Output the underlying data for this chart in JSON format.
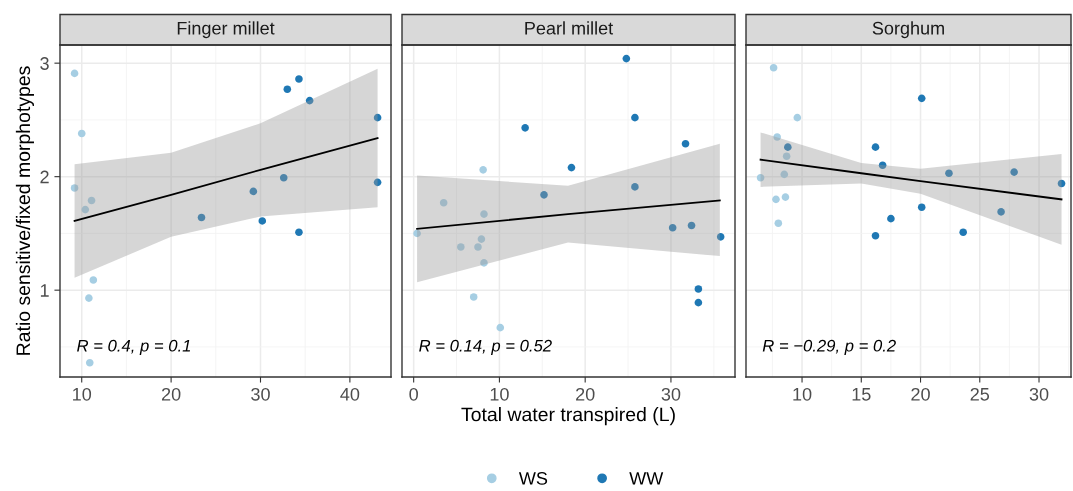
{
  "chart_data": [
    {
      "type": "scatter",
      "title": "Finger millet",
      "ylabel": "Ratio sensitive/fixed morphotypes",
      "grid": true,
      "xlim": [
        7.57,
        44.6
      ],
      "ylim": [
        0.235,
        3.16
      ],
      "xticks": [
        10,
        {
          "value": 15,
          "label": null
        },
        20,
        {
          "value": 25,
          "label": null
        },
        30,
        {
          "value": 35,
          "label": null
        },
        40
      ],
      "yticks": [
        {
          "value": 0.5,
          "label": null
        },
        1,
        {
          "value": 1.5,
          "label": null
        },
        2,
        {
          "value": 2.5,
          "label": null
        },
        3
      ],
      "annotations": [
        "R = 0.4, p = 0.1"
      ],
      "series": [
        {
          "color": "#a6cee3",
          "marker": "circle",
          "x": [
            9.2,
            10.0,
            9.2,
            10.4,
            11.1,
            11.3,
            10.8,
            10.9
          ],
          "values": [
            2.91,
            2.38,
            1.9,
            1.71,
            1.79,
            1.09,
            0.93,
            0.36
          ]
        },
        {
          "color": "#1f78b4",
          "marker": "circle",
          "x": [
            23.4,
            29.2,
            30.2,
            32.6,
            33.0,
            34.3,
            34.3,
            35.5,
            43.1,
            43.1
          ],
          "values": [
            1.64,
            1.87,
            1.61,
            1.99,
            2.77,
            2.86,
            1.51,
            2.67,
            2.52,
            1.95
          ]
        },
        {
          "type": "line",
          "color": "#000000",
          "x": [
            9.2,
            20,
            30,
            43.1
          ],
          "values": [
            1.61,
            1.84,
            2.06,
            2.34
          ],
          "lower": [
            1.11,
            1.47,
            1.65,
            1.73
          ],
          "upper": [
            2.11,
            2.21,
            2.47,
            2.95
          ]
        }
      ]
    },
    {
      "type": "scatter",
      "title": "Pearl millet",
      "xlabel": "Total water transpired (L)",
      "grid": true,
      "legend": "bottom",
      "tick_labels": "x",
      "xlim": [
        -1.36,
        37.47
      ],
      "ylim": [
        0.235,
        3.16
      ],
      "xticks": [
        0,
        {
          "value": 5,
          "label": null
        },
        10,
        {
          "value": 15,
          "label": null
        },
        20,
        {
          "value": 25,
          "label": null
        },
        30,
        {
          "value": 35,
          "label": null
        }
      ],
      "yticks": [
        {
          "value": 0.5,
          "label": null
        },
        1,
        {
          "value": 1.5,
          "label": null
        },
        2,
        {
          "value": 2.5,
          "label": null
        },
        3
      ],
      "annotations": [
        "R = 0.14, p = 0.52"
      ],
      "series": [
        {
          "name": "WS",
          "color": "#a6cee3",
          "marker": "circle",
          "x": [
            0.4,
            3.5,
            5.5,
            7.5,
            7.9,
            8.1,
            8.2,
            8.2,
            7.0,
            10.1
          ],
          "values": [
            1.5,
            1.77,
            1.38,
            1.38,
            1.45,
            2.06,
            1.67,
            1.24,
            0.94,
            0.67
          ]
        },
        {
          "name": "WW",
          "color": "#1f78b4",
          "marker": "circle",
          "x": [
            13.0,
            15.2,
            18.4,
            24.8,
            25.8,
            25.8,
            30.2,
            31.7,
            32.4,
            35.8,
            33.2,
            33.2
          ],
          "values": [
            2.43,
            1.84,
            2.08,
            3.04,
            2.52,
            1.91,
            1.55,
            2.29,
            1.57,
            1.47,
            1.01,
            0.89
          ]
        },
        {
          "type": "line",
          "color": "#000000",
          "x": [
            0.4,
            18,
            35.7
          ],
          "values": [
            1.54,
            1.67,
            1.79
          ],
          "lower": [
            1.07,
            1.42,
            1.3
          ],
          "upper": [
            2.01,
            1.92,
            2.29
          ]
        }
      ]
    },
    {
      "type": "scatter",
      "title": "Sorghum",
      "grid": true,
      "tick_labels": "x",
      "xlim": [
        5.27,
        32.7
      ],
      "ylim": [
        0.235,
        3.16
      ],
      "xticks": [
        {
          "value": 7.5,
          "label": null
        },
        10,
        {
          "value": 12.5,
          "label": null
        },
        15,
        {
          "value": 17.5,
          "label": null
        },
        20,
        {
          "value": 22.5,
          "label": null
        },
        25,
        {
          "value": 27.5,
          "label": null
        },
        30,
        {
          "value": 32.5,
          "label": null
        }
      ],
      "yticks": [
        {
          "value": 0.5,
          "label": null
        },
        1,
        {
          "value": 1.5,
          "label": null
        },
        2,
        {
          "value": 2.5,
          "label": null
        },
        3
      ],
      "annotations": [
        "R = −0.29, p = 0.2"
      ],
      "series": [
        {
          "color": "#a6cee3",
          "marker": "circle",
          "x": [
            7.6,
            9.6,
            7.9,
            8.7,
            8.5,
            6.5,
            7.8,
            8.6,
            8.0
          ],
          "values": [
            2.96,
            2.52,
            2.35,
            2.18,
            2.02,
            1.99,
            1.8,
            1.82,
            1.59
          ]
        },
        {
          "color": "#1f78b4",
          "marker": "circle",
          "x": [
            8.8,
            16.2,
            16.8,
            20.1,
            22.4,
            27.9,
            31.9,
            20.1,
            17.5,
            16.2,
            23.6,
            26.8
          ],
          "values": [
            2.26,
            2.26,
            2.1,
            2.69,
            2.03,
            2.04,
            1.94,
            1.73,
            1.63,
            1.48,
            1.51,
            1.69
          ]
        },
        {
          "type": "line",
          "color": "#000000",
          "x": [
            6.5,
            15,
            20,
            31.9
          ],
          "values": [
            2.15,
            2.03,
            1.96,
            1.8
          ],
          "lower": [
            1.91,
            1.94,
            1.85,
            1.4
          ],
          "upper": [
            2.39,
            2.12,
            2.07,
            2.2
          ]
        }
      ]
    }
  ]
}
